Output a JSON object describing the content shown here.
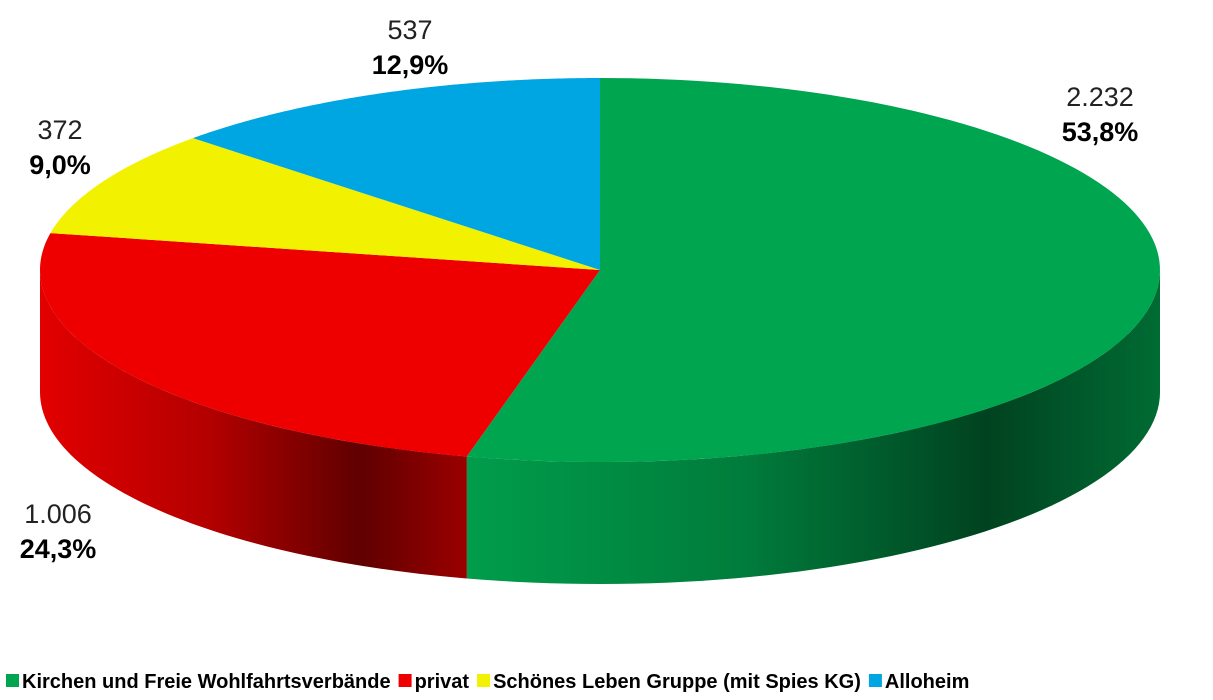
{
  "chart_data": {
    "type": "pie3d",
    "categories": [
      "Kirchen und Freie Wohlfahrtsverbände",
      "privat",
      "Schönes Leben Gruppe (mit Spies KG)",
      "Alloheim"
    ],
    "values": [
      2232,
      1006,
      372,
      537
    ],
    "value_labels": [
      "2.232",
      "1.006",
      "372",
      "537"
    ],
    "percent_labels": [
      "53,8%",
      "24,3%",
      "9,0%",
      "12,9%"
    ],
    "colors": [
      "#00a54f",
      "#ee0000",
      "#f2f200",
      "#00a6e2"
    ],
    "legend": "bottom"
  }
}
